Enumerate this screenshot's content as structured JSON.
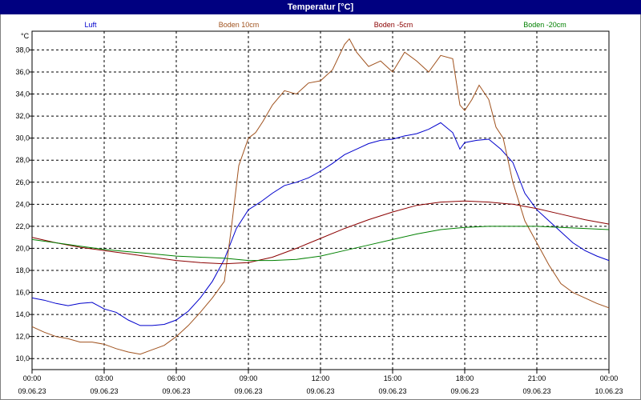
{
  "window": {
    "title": "Temperatur [°C]"
  },
  "chart_data": {
    "type": "line",
    "title": "Temperatur [°C]",
    "ylabel": "°C",
    "ylim": [
      9.0,
      39.7
    ],
    "yticks": [
      "10,0",
      "12,0",
      "14,0",
      "16,0",
      "18,0",
      "20,0",
      "22,0",
      "24,0",
      "26,0",
      "28,0",
      "30,0",
      "32,0",
      "34,0",
      "36,0",
      "38,0"
    ],
    "xticks": [
      {
        "time": "00:00",
        "date": "09.06.23"
      },
      {
        "time": "03:00",
        "date": "09.06.23"
      },
      {
        "time": "06:00",
        "date": "09.06.23"
      },
      {
        "time": "09:00",
        "date": "09.06.23"
      },
      {
        "time": "12:00",
        "date": "09.06.23"
      },
      {
        "time": "15:00",
        "date": "09.06.23"
      },
      {
        "time": "18:00",
        "date": "09.06.23"
      },
      {
        "time": "21:00",
        "date": "09.06.23"
      },
      {
        "time": "00:00",
        "date": "10.06.23"
      }
    ],
    "x_unit_hours": [
      0,
      24
    ],
    "grid": true,
    "legend": "top",
    "series": [
      {
        "name": "Luft",
        "color": "#0000cc",
        "x": [
          0,
          0.5,
          1,
          1.5,
          2,
          2.5,
          3,
          3.5,
          4,
          4.5,
          5,
          5.5,
          6,
          6.5,
          7,
          7.5,
          8,
          8.5,
          9,
          9.5,
          10,
          10.5,
          11,
          11.5,
          12,
          12.5,
          13,
          13.5,
          14,
          14.5,
          15,
          15.5,
          16,
          16.5,
          17,
          17.5,
          17.8,
          18,
          18.5,
          19,
          19.5,
          20,
          20.5,
          21,
          21.5,
          22,
          22.5,
          23,
          23.5,
          24
        ],
        "y": [
          15.5,
          15.3,
          15.0,
          14.8,
          15.0,
          15.1,
          14.5,
          14.2,
          13.5,
          13.0,
          13.0,
          13.1,
          13.5,
          14.3,
          15.5,
          17.0,
          19.0,
          21.8,
          23.5,
          24.2,
          25.0,
          25.7,
          26.0,
          26.4,
          27.0,
          27.7,
          28.5,
          29.0,
          29.5,
          29.8,
          29.9,
          30.2,
          30.4,
          30.8,
          31.4,
          30.5,
          29.0,
          29.6,
          29.8,
          29.9,
          29.0,
          27.8,
          25.0,
          23.5,
          22.5,
          21.5,
          20.5,
          19.8,
          19.3,
          18.9
        ]
      },
      {
        "name": "Boden 10cm",
        "color": "#a0521e",
        "x": [
          0,
          0.5,
          1,
          1.5,
          2,
          2.5,
          3,
          3.5,
          4,
          4.5,
          5,
          5.5,
          6,
          6.5,
          7,
          7.5,
          8,
          8.3,
          8.6,
          9,
          9.3,
          9.6,
          10,
          10.5,
          11,
          11.5,
          12,
          12.5,
          13,
          13.2,
          13.5,
          14,
          14.5,
          15,
          15.5,
          16,
          16.5,
          17,
          17.5,
          17.8,
          18,
          18.3,
          18.6,
          19,
          19.3,
          19.6,
          20,
          20.5,
          21,
          21.5,
          22,
          22.5,
          23,
          23.5,
          24
        ],
        "y": [
          12.9,
          12.4,
          12.0,
          11.8,
          11.5,
          11.5,
          11.3,
          10.9,
          10.6,
          10.4,
          10.8,
          11.2,
          12.0,
          13.0,
          14.2,
          15.5,
          17.0,
          22.0,
          27.5,
          30.0,
          30.5,
          31.5,
          33.0,
          34.3,
          34.0,
          35.0,
          35.2,
          36.2,
          38.5,
          39.0,
          37.8,
          36.5,
          37.0,
          36.0,
          37.8,
          37.0,
          36.0,
          37.5,
          37.2,
          33.0,
          32.5,
          33.5,
          34.8,
          33.5,
          31.0,
          30.0,
          26.0,
          22.5,
          20.5,
          18.5,
          16.8,
          16.0,
          15.5,
          15.0,
          14.6
        ]
      },
      {
        "name": "Boden -5cm",
        "color": "#8b0000",
        "x": [
          0,
          1,
          2,
          3,
          4,
          5,
          6,
          7,
          8,
          9,
          10,
          11,
          12,
          13,
          14,
          15,
          16,
          17,
          18,
          19,
          20,
          21,
          22,
          23,
          24
        ],
        "y": [
          21.0,
          20.5,
          20.1,
          19.8,
          19.5,
          19.2,
          18.9,
          18.7,
          18.6,
          18.7,
          19.2,
          20.0,
          20.9,
          21.8,
          22.6,
          23.3,
          23.9,
          24.2,
          24.3,
          24.2,
          24.0,
          23.6,
          23.1,
          22.6,
          22.2
        ]
      },
      {
        "name": "Boden -20cm",
        "color": "#008000",
        "x": [
          0,
          1,
          2,
          3,
          4,
          5,
          6,
          7,
          8,
          9,
          10,
          11,
          12,
          13,
          14,
          15,
          16,
          17,
          18,
          19,
          20,
          21,
          22,
          23,
          24
        ],
        "y": [
          20.8,
          20.5,
          20.2,
          19.9,
          19.7,
          19.5,
          19.3,
          19.2,
          19.1,
          18.9,
          18.9,
          19.0,
          19.3,
          19.8,
          20.3,
          20.8,
          21.3,
          21.7,
          21.9,
          22.0,
          22.0,
          22.0,
          21.9,
          21.8,
          21.7
        ]
      }
    ]
  }
}
